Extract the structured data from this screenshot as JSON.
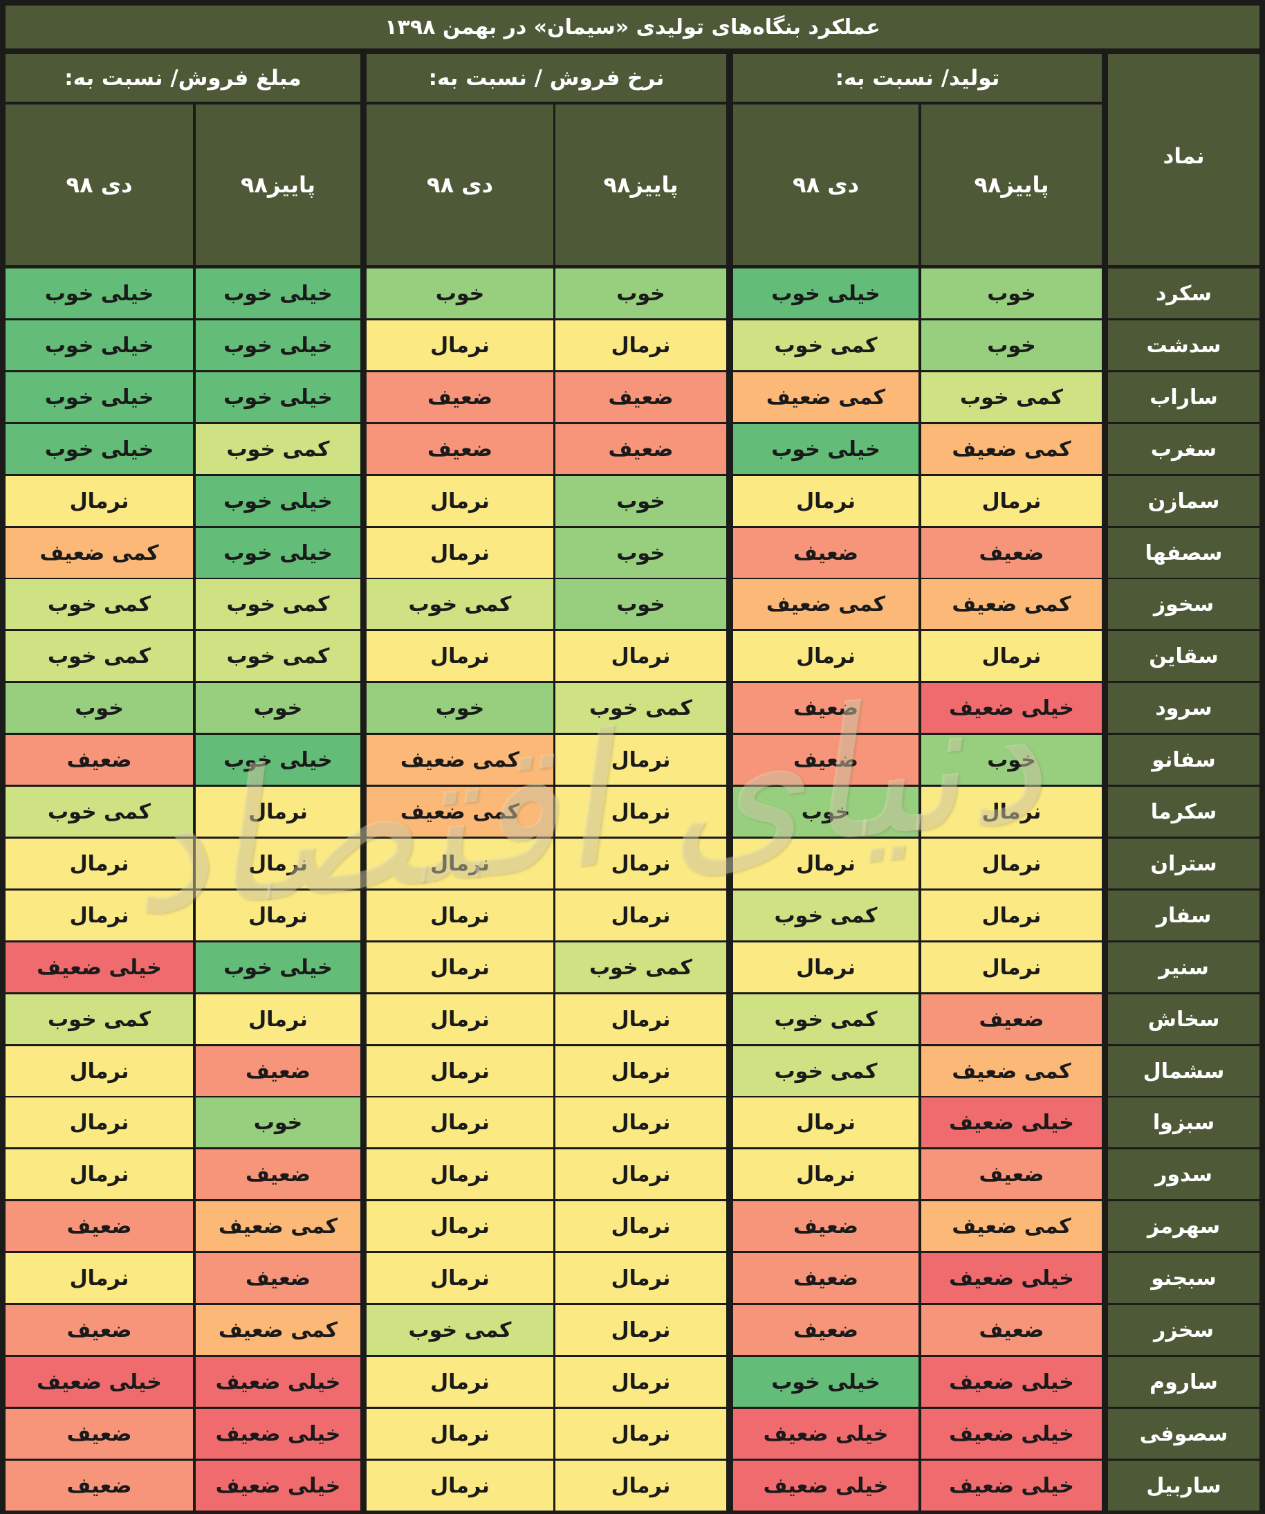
{
  "title": "عملکرد بنگاه‌های تولیدی «سیمان» در بهمن ۱۳۹۸",
  "symbol_header": "نماد",
  "groups": [
    {
      "label": "تولید/ نسبت به:"
    },
    {
      "label": "نرخ فروش / نسبت به:"
    },
    {
      "label": "مبلغ فروش/ نسبت به:"
    }
  ],
  "subheaders": [
    "پاییز۹۸",
    "دی ۹۸",
    "پاییز۹۸",
    "دی ۹۸",
    "پاییز۹۸",
    "دی ۹۸"
  ],
  "ratings": {
    "خیلی خوب": "#63bd78",
    "خوب": "#97cf7e",
    "کمی خوب": "#cfe283",
    "نرمال": "#fbe983",
    "کمی ضعیف": "#fbb877",
    "ضعیف": "#f6957a",
    "خیلی ضعیف": "#ef6b6e"
  },
  "watermark": "دنیای اقتصاد",
  "rows": [
    {
      "symbol": "سکرد",
      "values": [
        "خوب",
        "خیلی خوب",
        "خوب",
        "خوب",
        "خیلی خوب",
        "خیلی خوب"
      ]
    },
    {
      "symbol": "سدشت",
      "values": [
        "خوب",
        "کمی خوب",
        "نرمال",
        "نرمال",
        "خیلی خوب",
        "خیلی خوب"
      ]
    },
    {
      "symbol": "ساراب",
      "values": [
        "کمی خوب",
        "کمی ضعیف",
        "ضعیف",
        "ضعیف",
        "خیلی خوب",
        "خیلی خوب"
      ]
    },
    {
      "symbol": "سغرب",
      "values": [
        "کمی ضعیف",
        "خیلی خوب",
        "ضعیف",
        "ضعیف",
        "کمی خوب",
        "خیلی خوب"
      ]
    },
    {
      "symbol": "سمازن",
      "values": [
        "نرمال",
        "نرمال",
        "خوب",
        "نرمال",
        "خیلی خوب",
        "نرمال"
      ]
    },
    {
      "symbol": "سصفها",
      "values": [
        "ضعیف",
        "ضعیف",
        "خوب",
        "نرمال",
        "خیلی خوب",
        "کمی ضعیف"
      ]
    },
    {
      "symbol": "سخوز",
      "values": [
        "کمی ضعیف",
        "کمی ضعیف",
        "خوب",
        "کمی خوب",
        "کمی خوب",
        "کمی خوب"
      ]
    },
    {
      "symbol": "سقاین",
      "values": [
        "نرمال",
        "نرمال",
        "نرمال",
        "نرمال",
        "کمی خوب",
        "کمی خوب"
      ]
    },
    {
      "symbol": "سرود",
      "values": [
        "خیلی ضعیف",
        "ضعیف",
        "کمی خوب",
        "خوب",
        "خوب",
        "خوب"
      ]
    },
    {
      "symbol": "سفانو",
      "values": [
        "خوب",
        "ضعیف",
        "نرمال",
        "کمی ضعیف",
        "خیلی خوب",
        "ضعیف"
      ]
    },
    {
      "symbol": "سکرما",
      "values": [
        "نرمال",
        "خوب",
        "نرمال",
        "کمی ضعیف",
        "نرمال",
        "کمی خوب"
      ]
    },
    {
      "symbol": "ستران",
      "values": [
        "نرمال",
        "نرمال",
        "نرمال",
        "نرمال",
        "نرمال",
        "نرمال"
      ]
    },
    {
      "symbol": "سفار",
      "values": [
        "نرمال",
        "کمی خوب",
        "نرمال",
        "نرمال",
        "نرمال",
        "نرمال"
      ]
    },
    {
      "symbol": "سنیر",
      "values": [
        "نرمال",
        "نرمال",
        "کمی خوب",
        "نرمال",
        "خیلی خوب",
        "خیلی ضعیف"
      ]
    },
    {
      "symbol": "سخاش",
      "values": [
        "ضعیف",
        "کمی خوب",
        "نرمال",
        "نرمال",
        "نرمال",
        "کمی خوب"
      ]
    },
    {
      "symbol": "سشمال",
      "values": [
        "کمی ضعیف",
        "کمی خوب",
        "نرمال",
        "نرمال",
        "ضعیف",
        "نرمال"
      ]
    },
    {
      "symbol": "سبزوا",
      "values": [
        "خیلی ضعیف",
        "نرمال",
        "نرمال",
        "نرمال",
        "خوب",
        "نرمال"
      ]
    },
    {
      "symbol": "سدور",
      "values": [
        "ضعیف",
        "نرمال",
        "نرمال",
        "نرمال",
        "ضعیف",
        "نرمال"
      ]
    },
    {
      "symbol": "سهرمز",
      "values": [
        "کمی ضعیف",
        "ضعیف",
        "نرمال",
        "نرمال",
        "کمی ضعیف",
        "ضعیف"
      ]
    },
    {
      "symbol": "سبجنو",
      "values": [
        "خیلی ضعیف",
        "ضعیف",
        "نرمال",
        "نرمال",
        "ضعیف",
        "نرمال"
      ]
    },
    {
      "symbol": "سخزر",
      "values": [
        "ضعیف",
        "ضعیف",
        "نرمال",
        "کمی خوب",
        "کمی ضعیف",
        "ضعیف"
      ]
    },
    {
      "symbol": "ساروم",
      "values": [
        "خیلی ضعیف",
        "خیلی خوب",
        "نرمال",
        "نرمال",
        "خیلی ضعیف",
        "خیلی ضعیف"
      ]
    },
    {
      "symbol": "سصوفی",
      "values": [
        "خیلی ضعیف",
        "خیلی ضعیف",
        "نرمال",
        "نرمال",
        "خیلی ضعیف",
        "ضعیف"
      ]
    },
    {
      "symbol": "ساربیل",
      "values": [
        "خیلی ضعیف",
        "خیلی ضعیف",
        "نرمال",
        "نرمال",
        "خیلی ضعیف",
        "ضعیف"
      ]
    }
  ]
}
